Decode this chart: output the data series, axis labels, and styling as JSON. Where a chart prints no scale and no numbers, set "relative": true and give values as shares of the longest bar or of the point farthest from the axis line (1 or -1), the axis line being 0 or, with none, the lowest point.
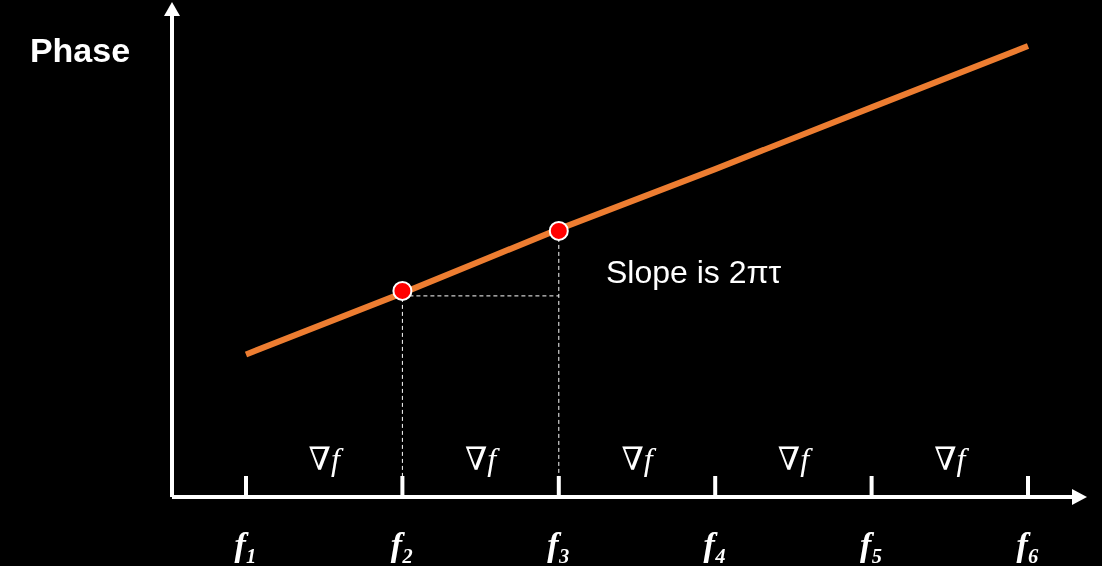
{
  "chart_data": {
    "type": "line",
    "ylabel": "Phase",
    "relative": true,
    "categories": [
      "f₁",
      "f₂",
      "f₃",
      "f₄",
      "f₅",
      "f₆"
    ],
    "series": [
      {
        "color": "#ed7d31",
        "values": [
          0.316,
          0.452,
          0.594,
          0.727,
          0.864,
          1
        ],
        "marker": "none"
      },
      {
        "type": "scatter",
        "color": "#ff0000",
        "x": [
          "f₂",
          "f₃"
        ],
        "values": [
          0.457,
          0.59
        ],
        "marker": "circle"
      }
    ],
    "annotations": [
      "∇f",
      "∇f",
      "∇f",
      "∇f",
      "∇f",
      "Slope is 2πτ"
    ],
    "grid": false
  }
}
